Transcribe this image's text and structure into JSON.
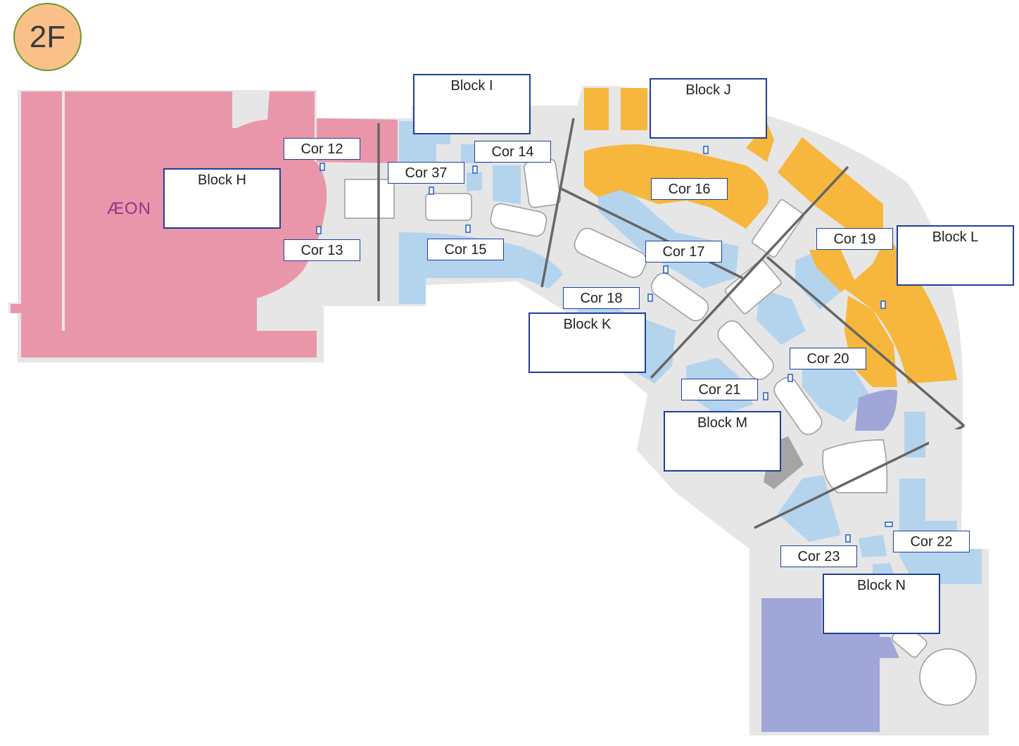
{
  "floor": "2F",
  "anchor_store": "ÆON",
  "blocks": [
    {
      "label": "Block H"
    },
    {
      "label": "Block I"
    },
    {
      "label": "Block J"
    },
    {
      "label": "Block K"
    },
    {
      "label": "Block L"
    },
    {
      "label": "Block M"
    },
    {
      "label": "Block N"
    }
  ],
  "corridors": [
    {
      "label": "Cor 12"
    },
    {
      "label": "Cor 13"
    },
    {
      "label": "Cor 14"
    },
    {
      "label": "Cor 37"
    },
    {
      "label": "Cor 15"
    },
    {
      "label": "Cor 16"
    },
    {
      "label": "Cor 17"
    },
    {
      "label": "Cor 18"
    },
    {
      "label": "Cor 19"
    },
    {
      "label": "Cor 20"
    },
    {
      "label": "Cor 21"
    },
    {
      "label": "Cor 22"
    },
    {
      "label": "Cor 23"
    }
  ],
  "colors": {
    "anchor_pink": "#e996ab",
    "shop_blue": "#b4d4ee",
    "shop_orange": "#f6b73c",
    "service_purple": "#a0a6d8",
    "corridor_gray": "#e6e6e6",
    "label_border": "#1f3f9a"
  }
}
